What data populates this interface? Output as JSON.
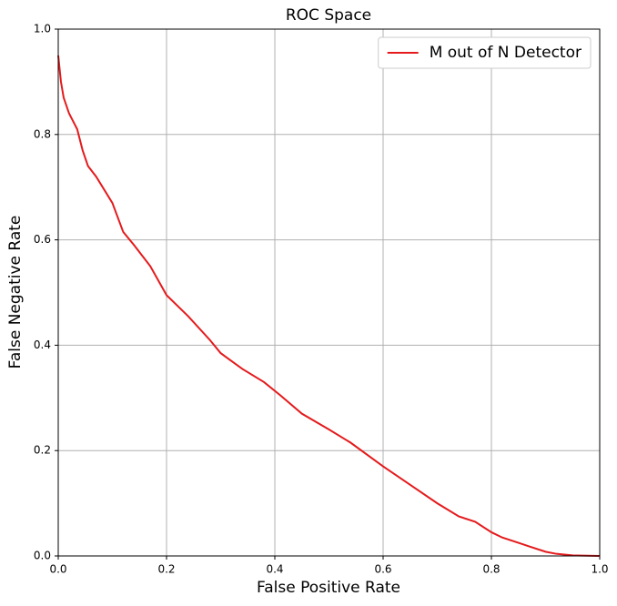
{
  "chart_data": {
    "type": "line",
    "title": "ROC Space",
    "x_label": "False Positive Rate",
    "y_label": "False Negative Rate",
    "x": [
      0,
      0.005,
      0.01,
      0.02,
      0.03,
      0.035,
      0.045,
      0.055,
      0.07,
      0.1,
      0.12,
      0.14,
      0.17,
      0.2,
      0.24,
      0.28,
      0.3,
      0.34,
      0.38,
      0.41,
      0.45,
      0.5,
      0.54,
      0.6,
      0.65,
      0.7,
      0.74,
      0.77,
      0.8,
      0.82,
      0.85,
      0.87,
      0.9,
      0.92,
      0.95,
      1.0
    ],
    "series": [
      {
        "name": "M out of N Detector",
        "color": "#e41a1c",
        "values": [
          0.95,
          0.9,
          0.87,
          0.84,
          0.82,
          0.81,
          0.77,
          0.74,
          0.72,
          0.67,
          0.615,
          0.59,
          0.55,
          0.495,
          0.455,
          0.41,
          0.385,
          0.355,
          0.33,
          0.305,
          0.27,
          0.24,
          0.215,
          0.17,
          0.135,
          0.1,
          0.075,
          0.065,
          0.045,
          0.035,
          0.025,
          0.018,
          0.008,
          0.004,
          0.001,
          0
        ]
      }
    ],
    "xlim": [
      0,
      1
    ],
    "ylim": [
      0,
      1
    ],
    "xticks": [
      {
        "value": 0,
        "label": "0.0"
      },
      0.2,
      0.4,
      0.6,
      0.8,
      {
        "value": 1,
        "label": "1.0"
      }
    ],
    "yticks": [
      {
        "value": 0,
        "label": "0.0"
      },
      0.2,
      0.4,
      0.6,
      0.8,
      {
        "value": 1,
        "label": "1.0"
      }
    ],
    "grid": true,
    "legend": "upper right"
  }
}
